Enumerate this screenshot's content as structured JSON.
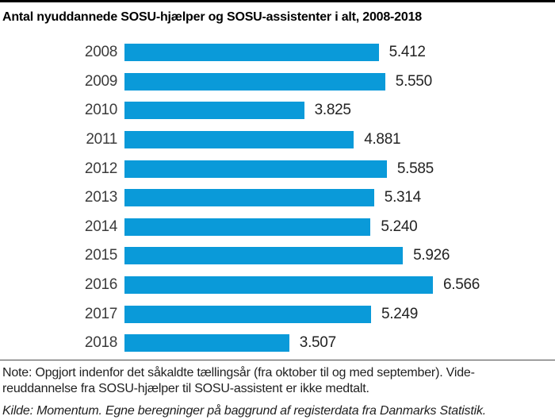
{
  "title": "Antal nyuddannede SOSU-hjælper og SOSU-assistenter i alt, 2008-2018",
  "chart_data": {
    "type": "bar",
    "orientation": "horizontal",
    "title": "Antal nyuddannede SOSU-hjælper og SOSU-assistenter i alt, 2008-2018",
    "categories": [
      "2008",
      "2009",
      "2010",
      "2011",
      "2012",
      "2013",
      "2014",
      "2015",
      "2016",
      "2017",
      "2018"
    ],
    "values": [
      5412,
      5550,
      3825,
      4881,
      5585,
      5314,
      5240,
      5926,
      6566,
      5249,
      3507
    ],
    "value_labels": [
      "5.412",
      "5.550",
      "3.825",
      "4.881",
      "5.585",
      "5.314",
      "5.240",
      "5.926",
      "6.566",
      "5.249",
      "3.507"
    ],
    "xlabel": "",
    "ylabel": "",
    "xlim": [
      0,
      6566
    ],
    "grid": false,
    "legend": false,
    "bar_color": "#0a9ad9",
    "value_label_position": "end-of-bar"
  },
  "note": {
    "lines": [
      "Note: Opgjort indenfor det såkaldte tællingsår (fra oktober til og med september). Vide-",
      "reuddannelse fra SOSU-hjælper til SOSU-assistent er ikke medtalt."
    ]
  },
  "source": "Kilde: Momentum. Egne beregninger på baggrund af registerdata fra Danmarks Statistik."
}
